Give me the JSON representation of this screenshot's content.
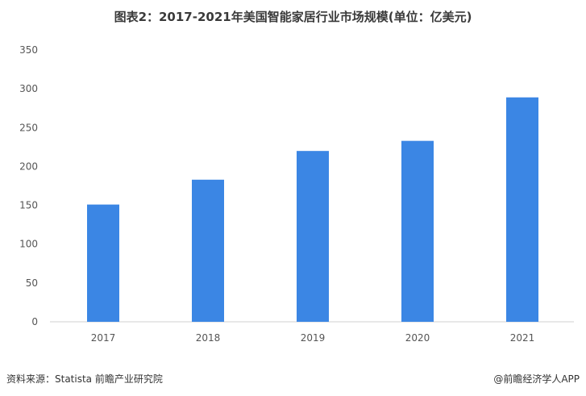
{
  "chart_data": {
    "type": "bar",
    "title": "图表2：2017-2021年美国智能家居行业市场规模(单位：亿美元)",
    "categories": [
      "2017",
      "2018",
      "2019",
      "2020",
      "2021"
    ],
    "values": [
      151,
      183,
      220,
      233,
      289
    ],
    "ylim": [
      0,
      350
    ],
    "yticks": [
      0,
      50,
      100,
      150,
      200,
      250,
      300,
      350
    ],
    "xlabel": "",
    "ylabel": "",
    "grid": false,
    "bar_color": "#3b86e4"
  },
  "footer": {
    "source": "资料来源：Statista 前瞻产业研究院",
    "credit": "@前瞻经济学人APP"
  }
}
